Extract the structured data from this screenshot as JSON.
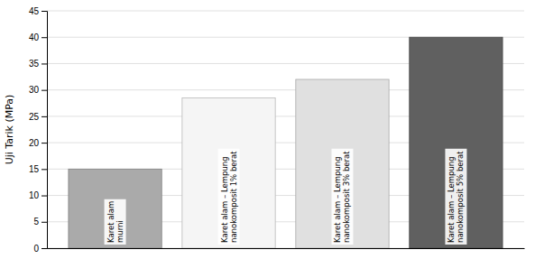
{
  "chart_data": {
    "type": "bar",
    "categories": [
      "Karet alam\nmurni",
      "Karet alam – Lempung\nnanokomposit 1% berat",
      "Karet alam – Lempung\nnanokomposit 3% berat",
      "Karet alam – Lempung\nnanokomposit 5% berat"
    ],
    "values": [
      15,
      28.5,
      32,
      40
    ],
    "colors": [
      "#aaaaaa",
      "#f5f5f5",
      "#e0e0e0",
      "#606060"
    ],
    "ylabel": "Uji Tarik (MPa)",
    "ylim": [
      0,
      45
    ],
    "yticks": [
      0,
      5,
      10,
      15,
      20,
      25,
      30,
      35,
      40,
      45
    ],
    "grid": true,
    "tick_labels": "y"
  }
}
